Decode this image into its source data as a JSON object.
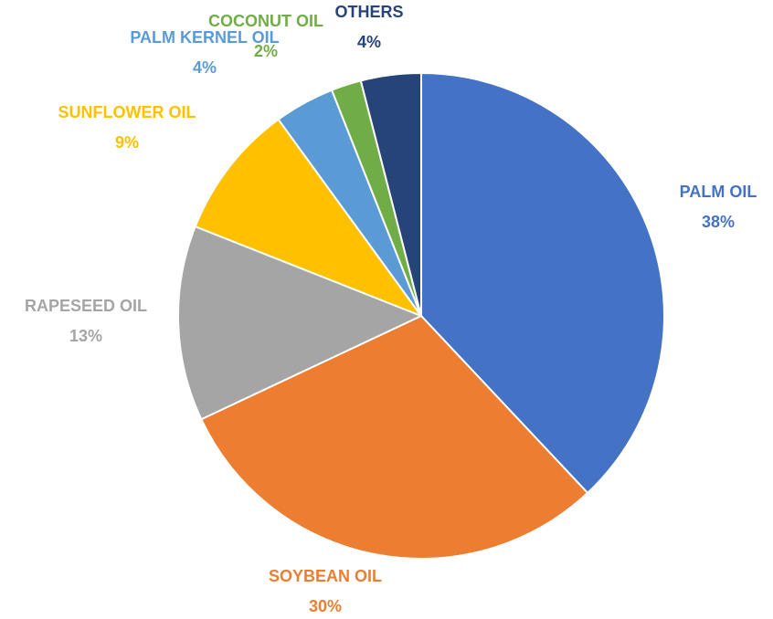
{
  "chart_data": {
    "type": "pie",
    "title": "",
    "start_angle_deg": 0,
    "direction": "clockwise",
    "slices": [
      {
        "label": "PALM OIL",
        "value": 38,
        "value_label": "38%",
        "color": "#4472C4"
      },
      {
        "label": "SOYBEAN OIL",
        "value": 30,
        "value_label": "30%",
        "color": "#ED7D31"
      },
      {
        "label": "RAPESEED OIL",
        "value": 13,
        "value_label": "13%",
        "color": "#A5A5A5"
      },
      {
        "label": "SUNFLOWER OIL",
        "value": 9,
        "value_label": "9%",
        "color": "#FFC000"
      },
      {
        "label": "PALM KERNEL OIL",
        "value": 4,
        "value_label": "4%",
        "color": "#5B9BD5"
      },
      {
        "label": "COCONUT OIL",
        "value": 2,
        "value_label": "2%",
        "color": "#70AD47"
      },
      {
        "label": "OTHERS",
        "value": 4,
        "value_label": "4%",
        "color": "#264478"
      }
    ],
    "legend": "none",
    "data_labels": "outside"
  }
}
